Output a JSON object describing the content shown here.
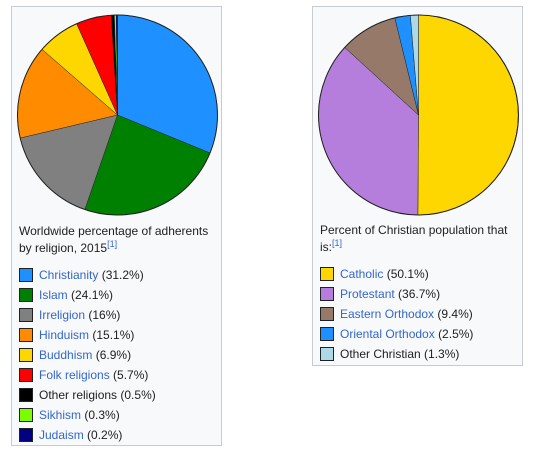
{
  "chart_data": [
    {
      "type": "pie",
      "title": "Worldwide percentage of adherents by religion, 2015",
      "title_ref": "[1]",
      "series": [
        {
          "label": "Christianity",
          "value": 31.2,
          "display": "(31.2%)",
          "color": "#1e90ff",
          "link": true
        },
        {
          "label": "Islam",
          "value": 24.1,
          "display": "(24.1%)",
          "color": "#008000",
          "link": true
        },
        {
          "label": "Irreligion",
          "value": 16,
          "display": "(16%)",
          "color": "#808080",
          "link": true
        },
        {
          "label": "Hinduism",
          "value": 15.1,
          "display": "(15.1%)",
          "color": "#ff8c00",
          "link": true
        },
        {
          "label": "Buddhism",
          "value": 6.9,
          "display": "(6.9%)",
          "color": "#ffd700",
          "link": true
        },
        {
          "label": "Folk religions",
          "value": 5.7,
          "display": "(5.7%)",
          "color": "#ff0000",
          "link": true
        },
        {
          "label": "Other religions",
          "value": 0.5,
          "display": "(0.5%)",
          "color": "#000000",
          "link": false
        },
        {
          "label": "Sikhism",
          "value": 0.3,
          "display": "(0.3%)",
          "color": "#7cfc00",
          "link": true
        },
        {
          "label": "Judaism",
          "value": 0.2,
          "display": "(0.2%)",
          "color": "#000080",
          "link": true
        }
      ]
    },
    {
      "type": "pie",
      "title": "Percent of Christian population that is:",
      "title_ref": "[1]",
      "series": [
        {
          "label": "Catholic",
          "value": 50.1,
          "display": "(50.1%)",
          "color": "#ffd700",
          "link": true
        },
        {
          "label": "Protestant",
          "value": 36.7,
          "display": "(36.7%)",
          "color": "#b57edc",
          "link": true
        },
        {
          "label": "Eastern Orthodox",
          "value": 9.4,
          "display": "(9.4%)",
          "color": "#967969",
          "link": true
        },
        {
          "label": "Oriental Orthodox",
          "value": 2.5,
          "display": "(2.5%)",
          "color": "#1e90ff",
          "link": true
        },
        {
          "label": "Other Christian",
          "value": 1.3,
          "display": "(1.3%)",
          "color": "#add8e6",
          "link": false
        }
      ]
    }
  ]
}
